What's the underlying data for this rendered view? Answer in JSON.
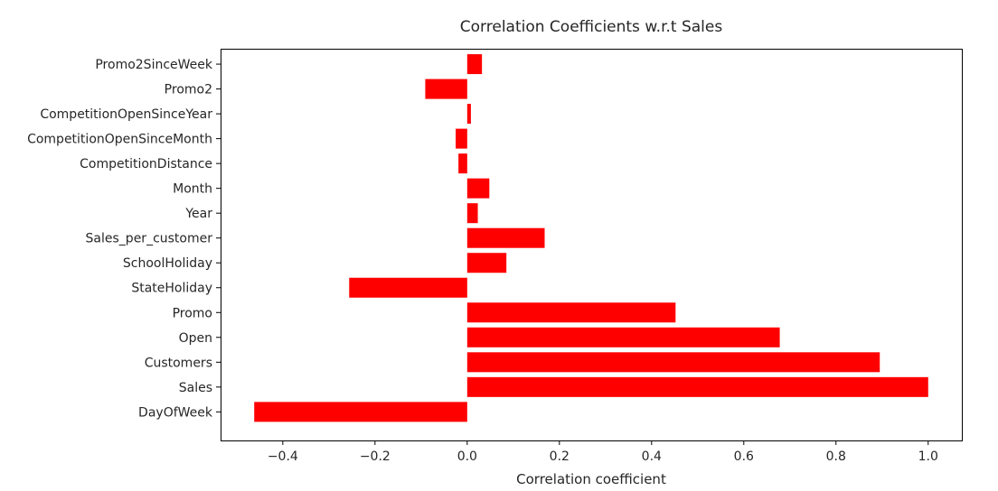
{
  "chart_data": {
    "type": "bar",
    "orientation": "horizontal",
    "title": "Correlation Coefficients w.r.t Sales",
    "xlabel": "Correlation coefficient",
    "ylabel": "",
    "categories": [
      "DayOfWeek",
      "Sales",
      "Customers",
      "Open",
      "Promo",
      "StateHoliday",
      "SchoolHoliday",
      "Sales_per_customer",
      "Year",
      "Month",
      "CompetitionDistance",
      "CompetitionOpenSinceMonth",
      "CompetitionOpenSinceYear",
      "Promo2",
      "Promo2SinceWeek"
    ],
    "values": [
      -0.462,
      1.0,
      0.895,
      0.678,
      0.452,
      -0.256,
      0.085,
      0.168,
      0.023,
      0.048,
      -0.019,
      -0.025,
      0.008,
      -0.091,
      0.032
    ],
    "xlim": [
      -0.535,
      1.073
    ],
    "xticks": [
      -0.4,
      -0.2,
      0.0,
      0.2,
      0.4,
      0.6,
      0.8,
      1.0
    ],
    "xtick_labels": [
      "−0.4",
      "−0.2",
      "0.0",
      "0.2",
      "0.4",
      "0.6",
      "0.8",
      "1.0"
    ],
    "bar_color": "#ff0000",
    "grid": false,
    "legend": "none"
  }
}
